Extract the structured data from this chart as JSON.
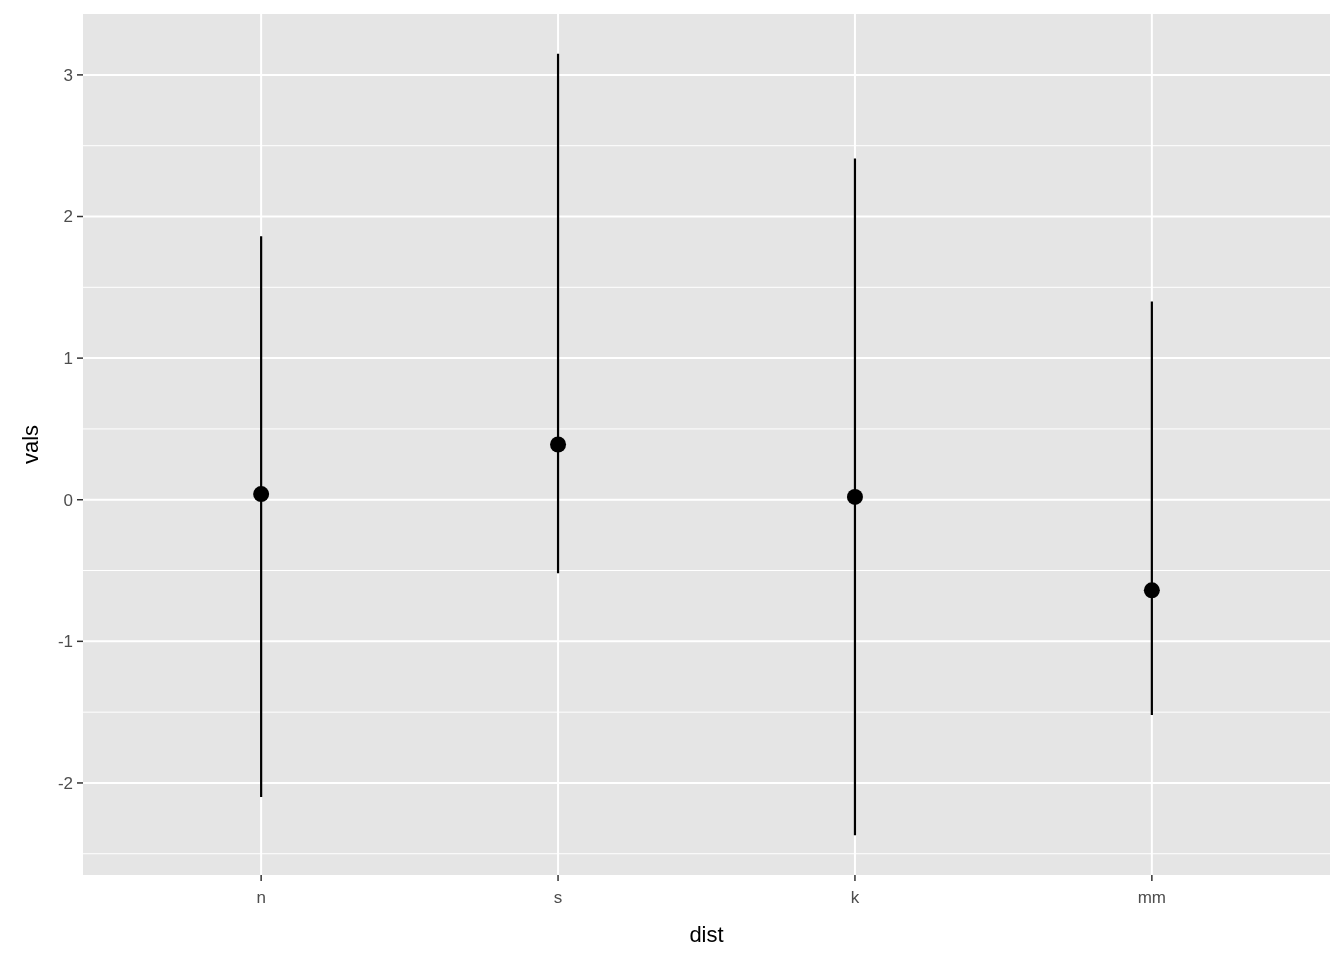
{
  "chart_data": {
    "type": "scatter",
    "xlabel": "dist",
    "ylabel": "vals",
    "categories": [
      "n",
      "s",
      "k",
      "mm"
    ],
    "values": [
      0.04,
      0.39,
      0.02,
      -0.64
    ],
    "errors": [
      [
        -2.1,
        1.86
      ],
      [
        -0.52,
        3.15
      ],
      [
        -2.37,
        2.41
      ],
      [
        -1.52,
        1.4
      ]
    ],
    "color": "#000000",
    "marker": "circle",
    "ylim": [
      -2.65,
      3.43
    ],
    "yticks": [
      -2,
      -1,
      0,
      1,
      2,
      3
    ],
    "grid": true
  }
}
